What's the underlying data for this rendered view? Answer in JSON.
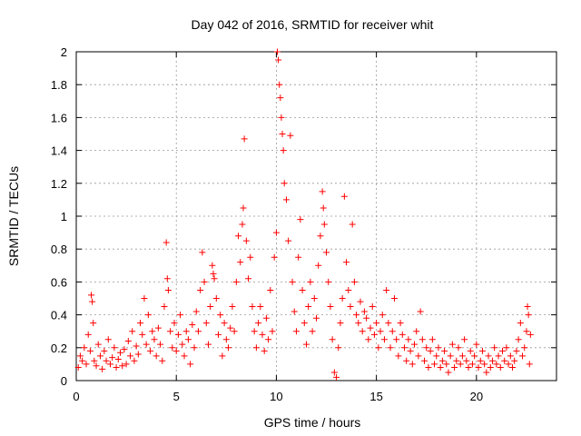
{
  "chart_data": {
    "type": "scatter",
    "title": "Day 042 of 2016, SRMTID for receiver whit",
    "xlabel": "GPS time / hours",
    "ylabel": "SRMTID / TECUs",
    "xlim": [
      0,
      24
    ],
    "ylim": [
      0,
      2
    ],
    "xticks": [
      0,
      5,
      10,
      15,
      20
    ],
    "xtick_labels": [
      "0",
      "5",
      "10",
      "15",
      "20"
    ],
    "yticks": [
      0,
      0.2,
      0.4,
      0.6,
      0.8,
      1,
      1.2,
      1.4,
      1.6,
      1.8,
      2
    ],
    "ytick_labels": [
      "0",
      "0.2",
      "0.4",
      "0.6",
      "0.8",
      "1",
      "1.2",
      "1.4",
      "1.6",
      "1.8",
      "2"
    ],
    "grid": true,
    "marker": "+",
    "color": "#ff0000",
    "series": [
      {
        "name": "SRMTID",
        "points": [
          [
            0.1,
            0.08
          ],
          [
            0.2,
            0.15
          ],
          [
            0.3,
            0.12
          ],
          [
            0.4,
            0.2
          ],
          [
            0.5,
            0.1
          ],
          [
            0.6,
            0.28
          ],
          [
            0.7,
            0.18
          ],
          [
            0.75,
            0.52
          ],
          [
            0.8,
            0.48
          ],
          [
            0.85,
            0.35
          ],
          [
            0.9,
            0.12
          ],
          [
            1.0,
            0.09
          ],
          [
            1.1,
            0.22
          ],
          [
            1.2,
            0.15
          ],
          [
            1.3,
            0.07
          ],
          [
            1.4,
            0.18
          ],
          [
            1.5,
            0.12
          ],
          [
            1.6,
            0.25
          ],
          [
            1.7,
            0.1
          ],
          [
            1.8,
            0.14
          ],
          [
            1.9,
            0.2
          ],
          [
            2.0,
            0.08
          ],
          [
            2.1,
            0.13
          ],
          [
            2.2,
            0.17
          ],
          [
            2.3,
            0.09
          ],
          [
            2.4,
            0.19
          ],
          [
            2.5,
            0.1
          ],
          [
            2.6,
            0.24
          ],
          [
            2.7,
            0.15
          ],
          [
            2.8,
            0.3
          ],
          [
            2.9,
            0.12
          ],
          [
            3.0,
            0.21
          ],
          [
            3.1,
            0.16
          ],
          [
            3.2,
            0.35
          ],
          [
            3.3,
            0.28
          ],
          [
            3.4,
            0.5
          ],
          [
            3.5,
            0.22
          ],
          [
            3.6,
            0.4
          ],
          [
            3.7,
            0.18
          ],
          [
            3.8,
            0.3
          ],
          [
            3.9,
            0.25
          ],
          [
            4.0,
            0.15
          ],
          [
            4.1,
            0.32
          ],
          [
            4.2,
            0.22
          ],
          [
            4.3,
            0.12
          ],
          [
            4.4,
            0.45
          ],
          [
            4.5,
            0.84
          ],
          [
            4.55,
            0.62
          ],
          [
            4.6,
            0.55
          ],
          [
            4.7,
            0.3
          ],
          [
            4.8,
            0.2
          ],
          [
            4.9,
            0.35
          ],
          [
            5.0,
            0.18
          ],
          [
            5.1,
            0.28
          ],
          [
            5.2,
            0.4
          ],
          [
            5.3,
            0.22
          ],
          [
            5.4,
            0.15
          ],
          [
            5.5,
            0.3
          ],
          [
            5.6,
            0.25
          ],
          [
            5.7,
            0.1
          ],
          [
            5.8,
            0.34
          ],
          [
            5.9,
            0.2
          ],
          [
            6.0,
            0.42
          ],
          [
            6.1,
            0.3
          ],
          [
            6.2,
            0.55
          ],
          [
            6.3,
            0.78
          ],
          [
            6.4,
            0.6
          ],
          [
            6.5,
            0.35
          ],
          [
            6.6,
            0.22
          ],
          [
            6.7,
            0.45
          ],
          [
            6.8,
            0.7
          ],
          [
            6.85,
            0.65
          ],
          [
            6.9,
            0.62
          ],
          [
            7.0,
            0.5
          ],
          [
            7.1,
            0.28
          ],
          [
            7.2,
            0.4
          ],
          [
            7.3,
            0.15
          ],
          [
            7.4,
            0.35
          ],
          [
            7.5,
            0.25
          ],
          [
            7.6,
            0.2
          ],
          [
            7.7,
            0.32
          ],
          [
            7.8,
            0.45
          ],
          [
            7.9,
            0.3
          ],
          [
            8.0,
            0.6
          ],
          [
            8.1,
            0.88
          ],
          [
            8.2,
            0.72
          ],
          [
            8.3,
            0.95
          ],
          [
            8.35,
            1.05
          ],
          [
            8.4,
            1.47
          ],
          [
            8.5,
            0.85
          ],
          [
            8.6,
            0.62
          ],
          [
            8.7,
            0.75
          ],
          [
            8.8,
            0.45
          ],
          [
            8.9,
            0.3
          ],
          [
            9.0,
            0.2
          ],
          [
            9.1,
            0.35
          ],
          [
            9.2,
            0.45
          ],
          [
            9.3,
            0.28
          ],
          [
            9.4,
            0.18
          ],
          [
            9.5,
            0.38
          ],
          [
            9.6,
            0.25
          ],
          [
            9.7,
            0.55
          ],
          [
            9.8,
            0.3
          ],
          [
            9.9,
            0.75
          ],
          [
            10.0,
            0.9
          ],
          [
            10.05,
            2.0
          ],
          [
            10.1,
            1.95
          ],
          [
            10.15,
            1.8
          ],
          [
            10.2,
            1.72
          ],
          [
            10.25,
            1.6
          ],
          [
            10.3,
            1.5
          ],
          [
            10.35,
            1.4
          ],
          [
            10.4,
            1.2
          ],
          [
            10.5,
            1.1
          ],
          [
            10.6,
            0.85
          ],
          [
            10.7,
            1.49
          ],
          [
            10.8,
            0.6
          ],
          [
            10.9,
            0.42
          ],
          [
            11.0,
            0.3
          ],
          [
            11.1,
            0.75
          ],
          [
            11.2,
            0.98
          ],
          [
            11.3,
            0.55
          ],
          [
            11.4,
            0.35
          ],
          [
            11.5,
            0.22
          ],
          [
            11.6,
            0.45
          ],
          [
            11.7,
            0.6
          ],
          [
            11.8,
            0.3
          ],
          [
            11.9,
            0.5
          ],
          [
            12.0,
            0.38
          ],
          [
            12.1,
            0.7
          ],
          [
            12.2,
            0.88
          ],
          [
            12.3,
            1.15
          ],
          [
            12.35,
            1.05
          ],
          [
            12.4,
            0.95
          ],
          [
            12.5,
            0.78
          ],
          [
            12.6,
            0.6
          ],
          [
            12.7,
            0.45
          ],
          [
            12.8,
            0.25
          ],
          [
            12.9,
            0.05
          ],
          [
            13.0,
            0.02
          ],
          [
            13.1,
            0.2
          ],
          [
            13.2,
            0.35
          ],
          [
            13.3,
            0.5
          ],
          [
            13.4,
            1.12
          ],
          [
            13.5,
            0.72
          ],
          [
            13.6,
            0.55
          ],
          [
            13.7,
            0.45
          ],
          [
            13.8,
            0.95
          ],
          [
            13.9,
            0.6
          ],
          [
            14.0,
            0.4
          ],
          [
            14.1,
            0.35
          ],
          [
            14.2,
            0.48
          ],
          [
            14.3,
            0.3
          ],
          [
            14.4,
            0.42
          ],
          [
            14.5,
            0.38
          ],
          [
            14.6,
            0.25
          ],
          [
            14.7,
            0.32
          ],
          [
            14.8,
            0.45
          ],
          [
            14.9,
            0.28
          ],
          [
            15.0,
            0.35
          ],
          [
            15.1,
            0.2
          ],
          [
            15.2,
            0.3
          ],
          [
            15.3,
            0.4
          ],
          [
            15.4,
            0.25
          ],
          [
            15.5,
            0.55
          ],
          [
            15.6,
            0.35
          ],
          [
            15.7,
            0.2
          ],
          [
            15.8,
            0.3
          ],
          [
            15.9,
            0.5
          ],
          [
            16.0,
            0.25
          ],
          [
            16.1,
            0.15
          ],
          [
            16.2,
            0.35
          ],
          [
            16.3,
            0.28
          ],
          [
            16.4,
            0.2
          ],
          [
            16.5,
            0.12
          ],
          [
            16.6,
            0.25
          ],
          [
            16.7,
            0.18
          ],
          [
            16.8,
            0.1
          ],
          [
            16.9,
            0.22
          ],
          [
            17.0,
            0.3
          ],
          [
            17.1,
            0.15
          ],
          [
            17.2,
            0.42
          ],
          [
            17.3,
            0.25
          ],
          [
            17.4,
            0.12
          ],
          [
            17.5,
            0.2
          ],
          [
            17.6,
            0.08
          ],
          [
            17.7,
            0.18
          ],
          [
            17.8,
            0.25
          ],
          [
            17.9,
            0.1
          ],
          [
            18.0,
            0.15
          ],
          [
            18.1,
            0.2
          ],
          [
            18.2,
            0.08
          ],
          [
            18.3,
            0.12
          ],
          [
            18.4,
            0.18
          ],
          [
            18.5,
            0.1
          ],
          [
            18.6,
            0.05
          ],
          [
            18.7,
            0.15
          ],
          [
            18.8,
            0.22
          ],
          [
            18.9,
            0.08
          ],
          [
            19.0,
            0.12
          ],
          [
            19.1,
            0.2
          ],
          [
            19.2,
            0.1
          ],
          [
            19.3,
            0.15
          ],
          [
            19.4,
            0.25
          ],
          [
            19.5,
            0.12
          ],
          [
            19.6,
            0.08
          ],
          [
            19.7,
            0.18
          ],
          [
            19.8,
            0.1
          ],
          [
            19.9,
            0.15
          ],
          [
            20.0,
            0.22
          ],
          [
            20.1,
            0.08
          ],
          [
            20.2,
            0.12
          ],
          [
            20.3,
            0.18
          ],
          [
            20.4,
            0.1
          ],
          [
            20.5,
            0.05
          ],
          [
            20.6,
            0.15
          ],
          [
            20.7,
            0.08
          ],
          [
            20.8,
            0.12
          ],
          [
            20.9,
            0.2
          ],
          [
            21.0,
            0.1
          ],
          [
            21.1,
            0.15
          ],
          [
            21.2,
            0.08
          ],
          [
            21.3,
            0.18
          ],
          [
            21.4,
            0.12
          ],
          [
            21.5,
            0.2
          ],
          [
            21.6,
            0.1
          ],
          [
            21.7,
            0.15
          ],
          [
            21.8,
            0.08
          ],
          [
            21.9,
            0.12
          ],
          [
            22.0,
            0.18
          ],
          [
            22.1,
            0.25
          ],
          [
            22.2,
            0.35
          ],
          [
            22.3,
            0.15
          ],
          [
            22.4,
            0.2
          ],
          [
            22.5,
            0.3
          ],
          [
            22.55,
            0.45
          ],
          [
            22.6,
            0.4
          ],
          [
            22.65,
            0.1
          ],
          [
            22.7,
            0.28
          ]
        ]
      }
    ]
  }
}
